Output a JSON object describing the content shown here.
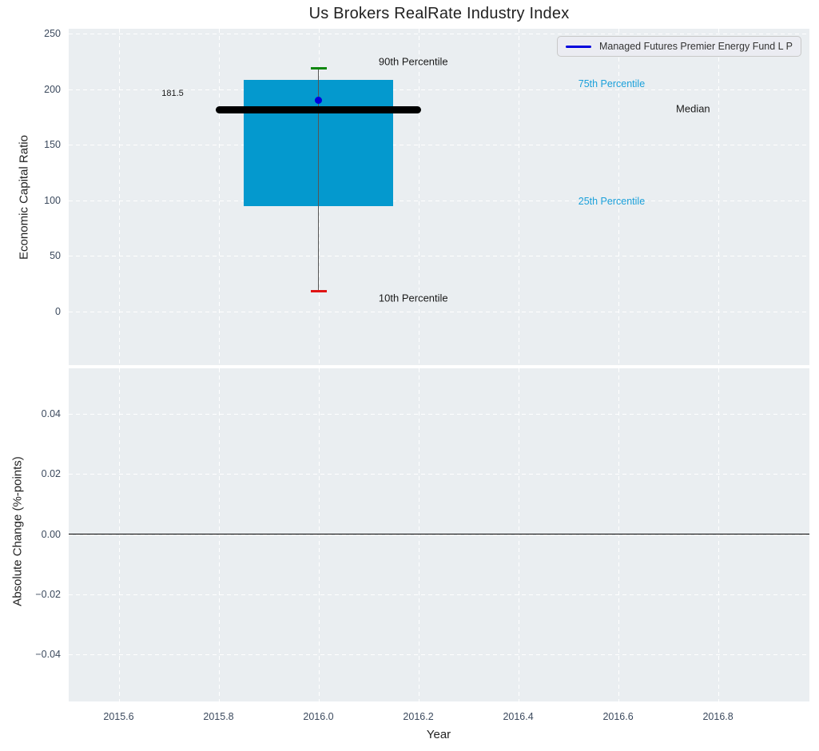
{
  "figure": {
    "title": "Us Brokers RealRate Industry Index",
    "background": "#ffffff",
    "plot_background": "#eaeef1",
    "grid_color": "#ffffff",
    "tick_label_color": "#3c4a5e"
  },
  "chart_data": [
    {
      "type": "box",
      "title": "Us Brokers RealRate Industry Index",
      "ylabel": "Economic Capital Ratio",
      "xlim": [
        2015.5,
        2016.983
      ],
      "ylim": [
        -48.1,
        254.3
      ],
      "grid": true,
      "legend_position": "upper right",
      "x_ticks": {
        "values": [
          2015.6,
          2015.8,
          2016.0,
          2016.2,
          2016.4,
          2016.6,
          2016.8
        ],
        "labels": [
          "2015.6",
          "2015.8",
          "2016.0",
          "2016.2",
          "2016.4",
          "2016.6",
          "2016.8"
        ],
        "show_labels": false
      },
      "y_ticks": {
        "values": [
          0,
          50,
          100,
          150,
          200,
          250
        ],
        "labels": [
          "0",
          "50",
          "100",
          "150",
          "200",
          "250"
        ]
      },
      "box": {
        "x": 2016.0,
        "p10": 18,
        "q1": 94.5,
        "median": 181.5,
        "q3": 208,
        "p90": 219,
        "box_halfwidth": 0.15,
        "median_halfwidth": 0.205,
        "cap_halfwidth": 0.016,
        "fill_color": "#0499ce",
        "median_color": "#000000",
        "p90_cap_color": "#0f870f",
        "p10_cap_color": "#e01414",
        "whisker_color": "#555555",
        "median_label": "181.5"
      },
      "fund_point": {
        "x": 2016.0,
        "y": 190,
        "color": "#0000dd"
      },
      "legend": {
        "label": "Managed Futures Premier Energy Fund L P",
        "line_color": "#0000dd"
      },
      "annotations": [
        {
          "text": "90th Percentile",
          "x": 2016.19,
          "y": 225.0,
          "color": "#1a1a1a",
          "size": 13
        },
        {
          "text": "75th Percentile",
          "x": 2016.587,
          "y": 205.0,
          "color": "#1aa0da",
          "size": 12.5
        },
        {
          "text": "Median",
          "x": 2016.75,
          "y": 182.5,
          "color": "#1a1a1a",
          "size": 13
        },
        {
          "text": "25th Percentile",
          "x": 2016.587,
          "y": 99.5,
          "color": "#1aa0da",
          "size": 12.5
        },
        {
          "text": "10th Percentile",
          "x": 2016.19,
          "y": 12.0,
          "color": "#1a1a1a",
          "size": 13
        },
        {
          "text": "181.5",
          "x": 2015.708,
          "y": 196.0,
          "color": "#1a1a1a",
          "size": 11
        }
      ]
    },
    {
      "type": "line",
      "ylabel": "Absolute Change (%-points)",
      "xlabel": "Year",
      "xlim": [
        2015.5,
        2016.983
      ],
      "ylim": [
        -0.0557,
        0.0552
      ],
      "grid": true,
      "x_ticks": {
        "values": [
          2015.6,
          2015.8,
          2016.0,
          2016.2,
          2016.4,
          2016.6,
          2016.8
        ],
        "labels": [
          "2015.6",
          "2015.8",
          "2016.0",
          "2016.2",
          "2016.4",
          "2016.6",
          "2016.8"
        ],
        "show_labels": true
      },
      "y_ticks": {
        "values": [
          -0.04,
          -0.02,
          0.0,
          0.02,
          0.04
        ],
        "labels": [
          "−0.04",
          "−0.02",
          "0.00",
          "0.02",
          "0.04"
        ]
      },
      "series": [],
      "zero_line": {
        "y": 0.0,
        "color": "#000000",
        "width": 1.5
      }
    }
  ]
}
